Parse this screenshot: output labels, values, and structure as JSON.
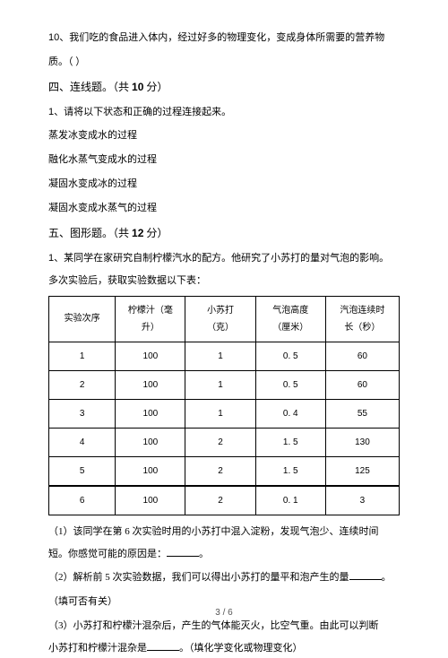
{
  "q10": {
    "num": "10、",
    "text1": "我们吃的食品进入体内，经过好多的物理变化，变成身体所需要的营养物",
    "text2": "质。（ ）"
  },
  "sec4": {
    "title_a": "四、连线题。（共 ",
    "title_num": "10",
    "title_b": " 分）"
  },
  "s4q1": {
    "num": "1、",
    "text": "请将以下状态和正确的过程连接起来。"
  },
  "pairs": {
    "p1": "蒸发冰变成水的过程",
    "p2": "融化水蒸气变成水的过程",
    "p3": "凝固水变成冰的过程",
    "p4": "凝固水变成水蒸气的过程"
  },
  "sec5": {
    "title_a": "五、图形题。（共 ",
    "title_num": "12",
    "title_b": " 分）"
  },
  "s5q1": {
    "num": "1、",
    "text1": "某同学在家研究自制柠檬汽水的配方。他研究了小苏打的量对气泡的影响。",
    "text2": "多次实验后，获取实验数据以下表："
  },
  "table": {
    "headers": {
      "c1": "实验次序",
      "c2a": "柠檬汁（毫",
      "c2b": "升）",
      "c3a": "小苏打",
      "c3b": "（克）",
      "c4a": "气泡高度",
      "c4b": "（厘米）",
      "c5a": "汽泡连续时",
      "c5b": "长（秒）"
    },
    "rows": [
      {
        "c1": "1",
        "c2": "100",
        "c3": "1",
        "c4": "0. 5",
        "c5": "60"
      },
      {
        "c1": "2",
        "c2": "100",
        "c3": "1",
        "c4": "0. 5",
        "c5": "60"
      },
      {
        "c1": "3",
        "c2": "100",
        "c3": "1",
        "c4": "0. 4",
        "c5": "55"
      },
      {
        "c1": "4",
        "c2": "100",
        "c3": "2",
        "c4": "1. 5",
        "c5": "130"
      },
      {
        "c1": "5",
        "c2": "100",
        "c3": "2",
        "c4": "1. 5",
        "c5": "125"
      },
      {
        "c1": "6",
        "c2": "100",
        "c3": "2",
        "c4": "0. 1",
        "c5": "3"
      }
    ]
  },
  "sub1": {
    "a": "（1）该同学在第 6 次实验时用的小苏打中混入淀粉，发现气泡少、连续时间",
    "b": "短。你感觉可能的原因是：",
    "c": "。"
  },
  "sub2": {
    "a": "（2）解析前 5 次实验数据，我们可以得出小苏打的量平和泡产生的量",
    "b": "。"
  },
  "sub2x": "（填可否有关）",
  "sub3": {
    "a": "（3）小苏打和柠檬汁混杂后，产生的气体能灭火，比空气重。由此可以判断",
    "b": "小苏打和柠檬汁混杂是",
    "c": "。（填化学变化或物理变化）"
  },
  "page": "3 / 6"
}
